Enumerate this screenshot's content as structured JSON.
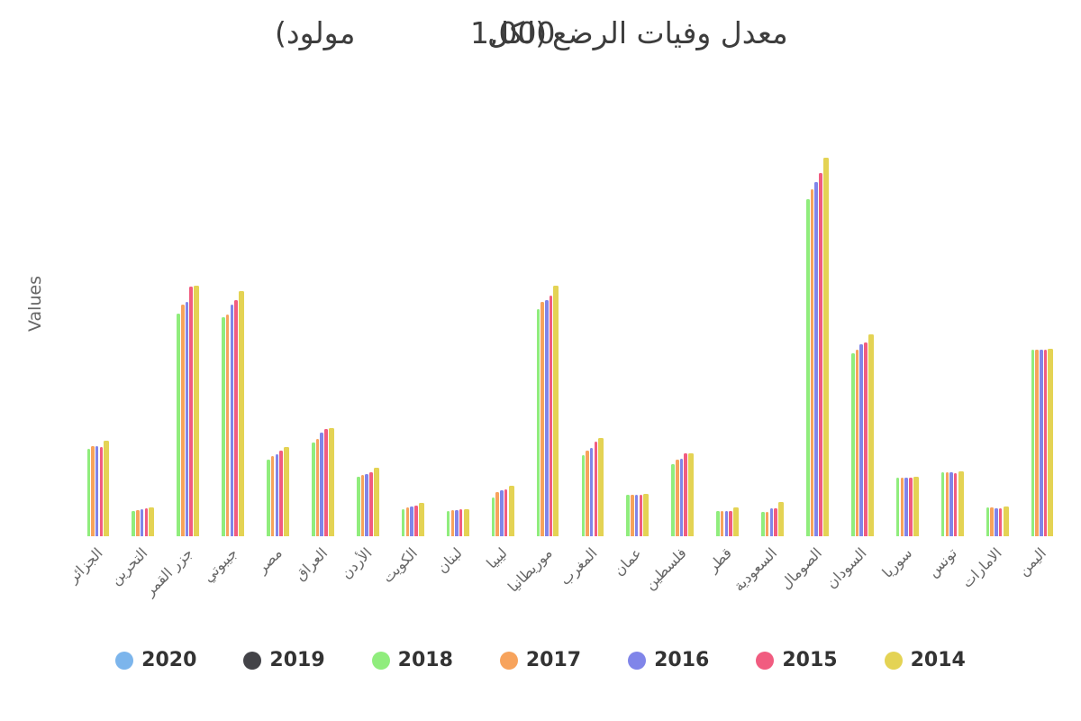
{
  "chart_data": {
    "type": "bar",
    "title": "معدل وفيات الرضع (لكل 1,000 مولود)",
    "title_render_parts": {
      "segment_main": "معدل وفيات الرضع",
      "segment_paren": "(لكل",
      "segment_number": "1,000",
      "segment_end": "مولود)"
    },
    "xlabel": "",
    "ylabel": "Values",
    "ylim": [
      0,
      100
    ],
    "grid": false,
    "legend_position": "bottom",
    "categories": [
      "الجزائر",
      "التحرين",
      "جزر القمر",
      "جيبوتي",
      "مصر",
      "العراق",
      "الأردن",
      "الكويت",
      "لبنان",
      "ليبيا",
      "موريطانيا",
      "المغرب",
      "عمان",
      "فلسطين",
      "قطر",
      "السعودية",
      "الصومال",
      "السودان",
      "سوريا",
      "تونس",
      "الامارات",
      "اليمن"
    ],
    "series": [
      {
        "name": "2020",
        "color": "#7cb5ec",
        "values": []
      },
      {
        "name": "2019",
        "color": "#434348",
        "values": []
      },
      {
        "name": "2018",
        "color": "#90ed7d",
        "values": [
          19.6,
          5.7,
          50.0,
          49.2,
          17.2,
          21.0,
          13.4,
          6.1,
          5.7,
          8.7,
          51.0,
          18.2,
          9.3,
          16.2,
          5.7,
          5.5,
          75.5,
          41.1,
          13.2,
          14.4,
          6.5,
          41.9
        ]
      },
      {
        "name": "2017",
        "color": "#f7a35c",
        "values": [
          20.2,
          5.9,
          52.0,
          49.8,
          18.0,
          21.9,
          13.8,
          6.4,
          5.8,
          10.0,
          52.6,
          19.2,
          9.3,
          17.2,
          5.7,
          5.5,
          77.7,
          41.9,
          13.2,
          14.3,
          6.4,
          41.9
        ]
      },
      {
        "name": "2016",
        "color": "#8085e9",
        "values": [
          20.2,
          6.1,
          52.6,
          52.0,
          18.4,
          23.3,
          14.0,
          6.6,
          5.9,
          10.3,
          53.0,
          19.8,
          9.4,
          17.4,
          5.6,
          6.3,
          79.4,
          43.1,
          13.2,
          14.3,
          6.3,
          41.9
        ]
      },
      {
        "name": "2015",
        "color": "#f15c80",
        "values": [
          20.0,
          6.3,
          55.9,
          53.0,
          19.2,
          24.1,
          14.4,
          6.8,
          6.0,
          10.5,
          54.0,
          21.3,
          9.4,
          18.6,
          5.6,
          6.3,
          81.4,
          43.5,
          13.2,
          14.2,
          6.3,
          41.9
        ]
      },
      {
        "name": "2014",
        "color": "#e4d354",
        "values": [
          21.4,
          6.5,
          56.1,
          54.9,
          20.0,
          24.3,
          15.4,
          7.5,
          6.1,
          11.3,
          56.1,
          22.1,
          9.5,
          18.6,
          6.5,
          7.7,
          84.8,
          45.3,
          13.4,
          14.5,
          6.6,
          42.0
        ]
      }
    ]
  }
}
